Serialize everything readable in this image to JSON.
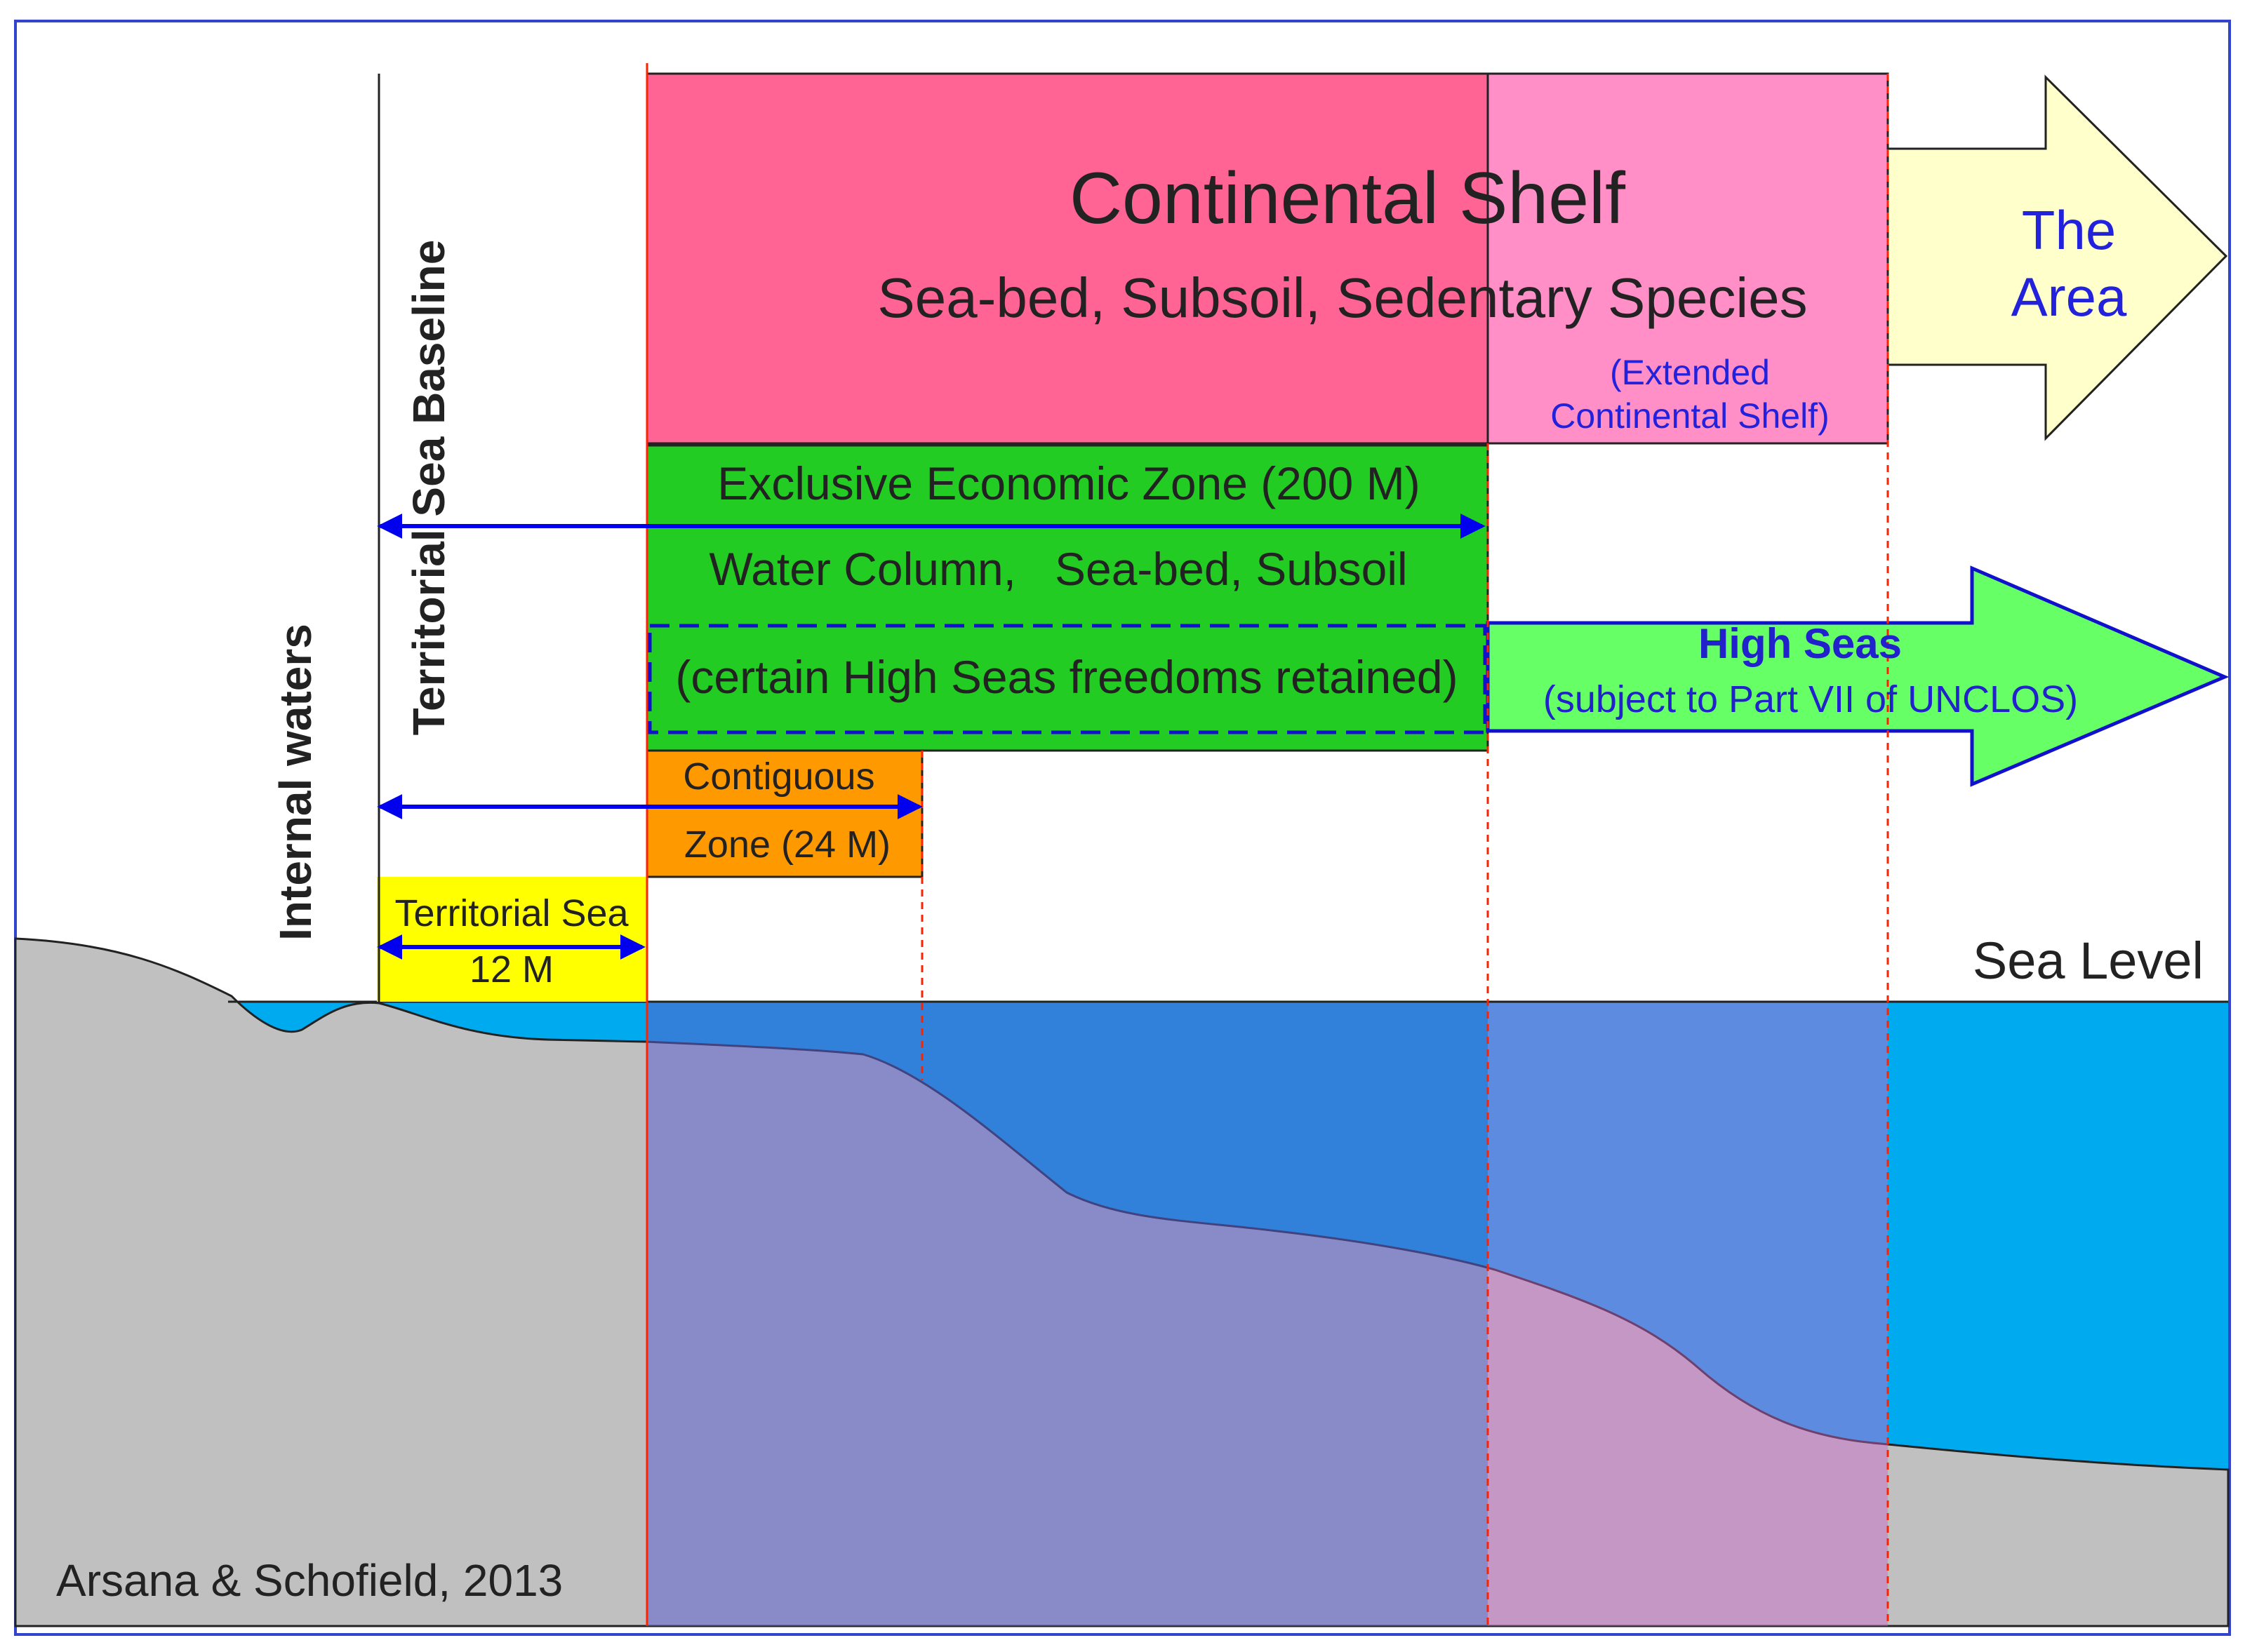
{
  "continental_shelf": {
    "title": "Continental Shelf",
    "subtitle": "Sea-bed, Subsoil, Sedentary Species",
    "extended_line1": "(Extended",
    "extended_line2": "Continental Shelf)"
  },
  "the_area": {
    "line1": "The",
    "line2": "Area"
  },
  "eez": {
    "title": "Exclusive Economic Zone (200 M)",
    "subtitle": "Water Column,   Sea-bed, Subsoil",
    "freedoms": "(certain High Seas freedoms retained)"
  },
  "high_seas": {
    "title": "High Seas",
    "subtitle": "(subject to Part VII of UNCLOS)"
  },
  "contiguous_zone": {
    "line1": "Contiguous",
    "line2": "Zone (24 M)"
  },
  "territorial_sea": {
    "line1": "Territorial Sea",
    "line2": "12 M"
  },
  "labels": {
    "baseline": "Territorial Sea Baseline",
    "internal_waters": "Internal waters",
    "sea_level": "Sea Level",
    "credit": "Arsana & Schofield, 2013"
  },
  "colors": {
    "continental_shelf": "#ff6495",
    "extended_shelf": "#ff8fc6",
    "the_area_arrow": "#ffffcc",
    "eez": "#22cc22",
    "high_seas_arrow": "#66ff66",
    "contiguous_zone": "#ff9900",
    "territorial_sea": "#ffff00",
    "sea": "#00aaee",
    "land": "#c0c0c0",
    "arrow": "#0000ee",
    "boundary": "#ff2200"
  }
}
